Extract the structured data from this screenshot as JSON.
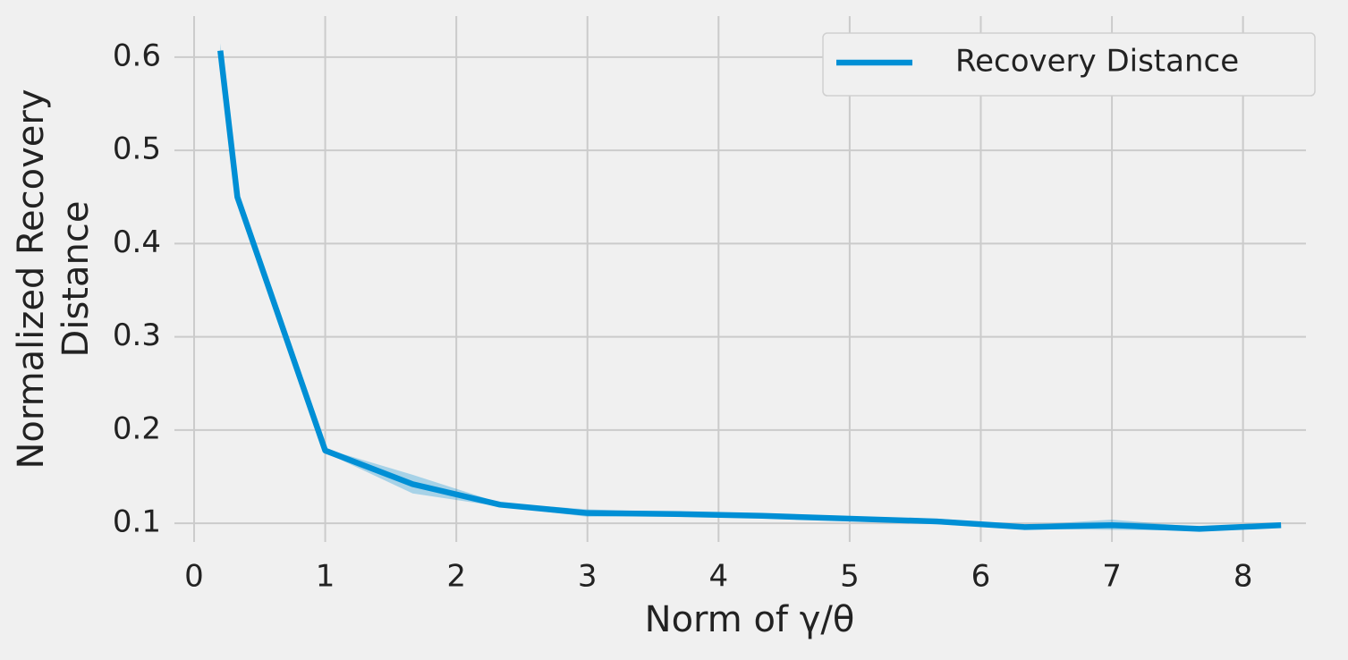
{
  "chart_data": {
    "type": "line",
    "xlabel": "Norm of γ/θ",
    "ylabel": [
      "Normalized Recovery",
      "Distance"
    ],
    "x": [
      0.2,
      0.33,
      1.0,
      1.667,
      2.333,
      3.0,
      3.667,
      4.333,
      5.0,
      5.667,
      6.333,
      7.0,
      7.667,
      8.29
    ],
    "series": [
      {
        "name": "Recovery Distance",
        "color": "#008fd5",
        "values": [
          0.607,
          0.45,
          0.178,
          0.142,
          0.12,
          0.111,
          0.11,
          0.108,
          0.105,
          0.102,
          0.096,
          0.098,
          0.094,
          0.098
        ],
        "lower": [
          0.603,
          0.447,
          0.176,
          0.132,
          0.118,
          0.107,
          0.108,
          0.106,
          0.103,
          0.099,
          0.094,
          0.093,
          0.092,
          0.097
        ],
        "upper": [
          0.615,
          0.453,
          0.18,
          0.152,
          0.122,
          0.115,
          0.112,
          0.11,
          0.107,
          0.105,
          0.098,
          0.104,
          0.096,
          0.099
        ]
      }
    ],
    "xlim": [
      -0.15,
      8.48
    ],
    "ylim": [
      0.08,
      0.644
    ],
    "xticks": [
      0,
      1,
      2,
      3,
      4,
      5,
      6,
      7,
      8
    ],
    "yticks": [
      0.1,
      0.2,
      0.3,
      0.4,
      0.5,
      0.6
    ],
    "grid": true,
    "legend": "upper right"
  }
}
